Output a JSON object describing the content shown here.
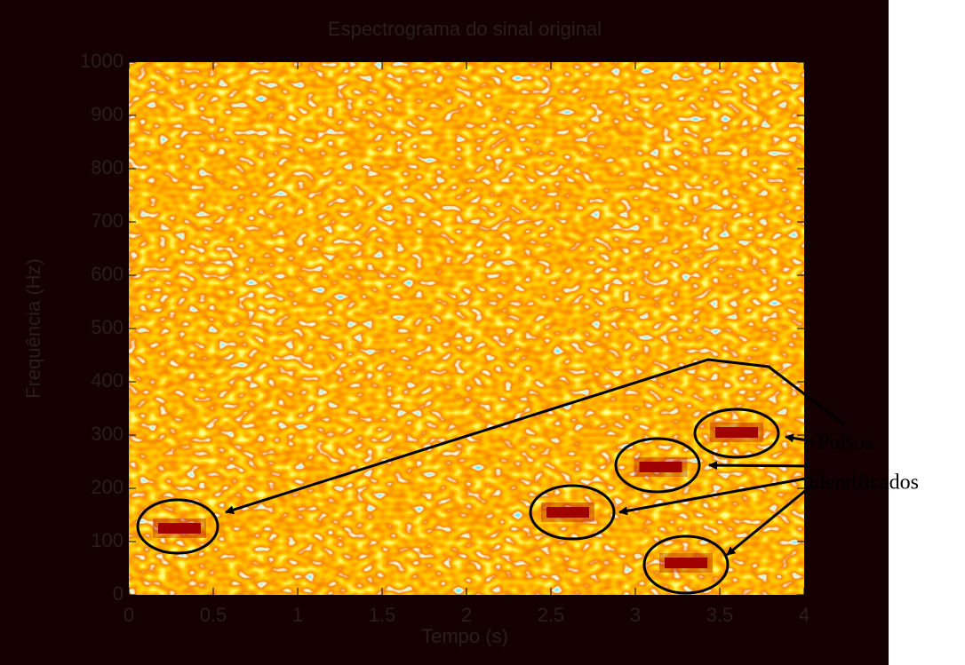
{
  "chart_data": {
    "type": "spectrogram",
    "title": "Espectrograma do sinal original",
    "xlabel": "Tempo (s)",
    "ylabel": "Frequência (Hz)",
    "xlim": [
      0,
      4
    ],
    "ylim": [
      0,
      1000
    ],
    "xticks": [
      0,
      0.5,
      1,
      1.5,
      2,
      2.5,
      3,
      3.5,
      4
    ],
    "yticks": [
      0,
      100,
      200,
      300,
      400,
      500,
      600,
      700,
      800,
      900,
      1000
    ],
    "series": [
      {
        "color": "#a00000",
        "x": [
          0.3,
          2.6,
          3.15,
          3.6,
          3.3
        ],
        "values": [
          125,
          155,
          240,
          305,
          60
        ]
      }
    ],
    "annotations": [
      "Pulsos",
      "identificados"
    ]
  }
}
